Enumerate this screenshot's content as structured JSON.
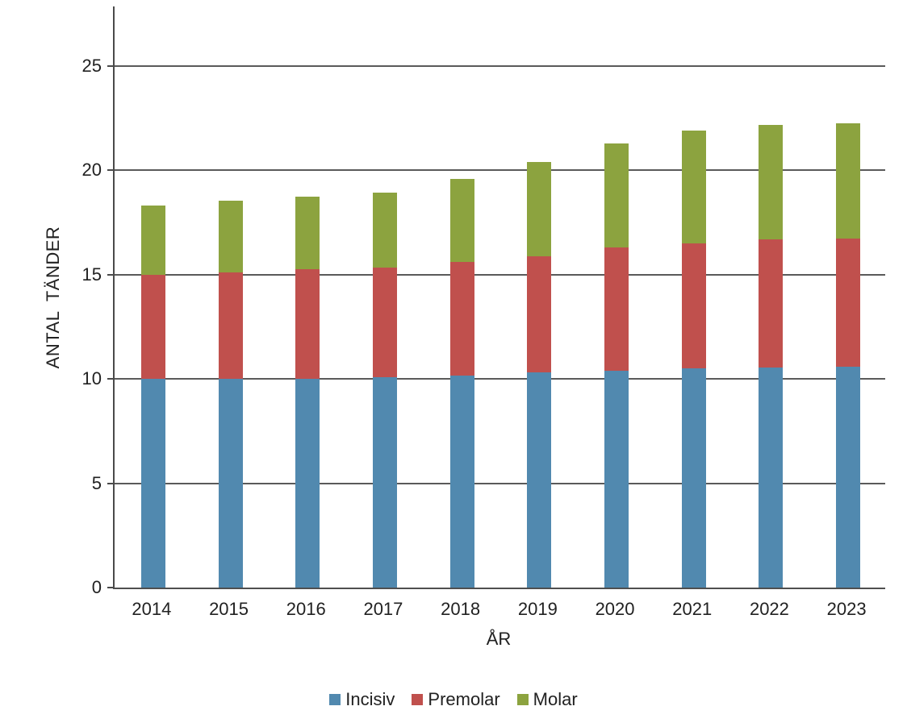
{
  "chart_data": {
    "type": "bar",
    "stacked": true,
    "title": "",
    "xlabel": "ÅR",
    "ylabel": "ANTAL TÄNDER",
    "categories": [
      "2014",
      "2015",
      "2016",
      "2017",
      "2018",
      "2019",
      "2020",
      "2021",
      "2022",
      "2023"
    ],
    "series": [
      {
        "name": "Incisiv",
        "color": "#5189AF",
        "values": [
          10.0,
          10.0,
          10.0,
          10.1,
          10.15,
          10.3,
          10.4,
          10.5,
          10.55,
          10.6
        ]
      },
      {
        "name": "Premolar",
        "color": "#C0504D",
        "values": [
          5.0,
          5.1,
          5.25,
          5.25,
          5.45,
          5.6,
          5.9,
          6.0,
          6.15,
          6.15
        ]
      },
      {
        "name": "Molar",
        "color": "#8CA33F",
        "values": [
          3.3,
          3.45,
          3.5,
          3.6,
          4.0,
          4.5,
          5.0,
          5.4,
          5.5,
          5.5
        ]
      }
    ],
    "y_ticks": [
      0,
      5,
      10,
      15,
      20,
      25
    ],
    "y_max": 27.94,
    "grid": true,
    "legend_position": "bottom",
    "axis_color": "#4a4a4a",
    "gridline_color": "#5a5a5a",
    "text_color": "#212121"
  }
}
